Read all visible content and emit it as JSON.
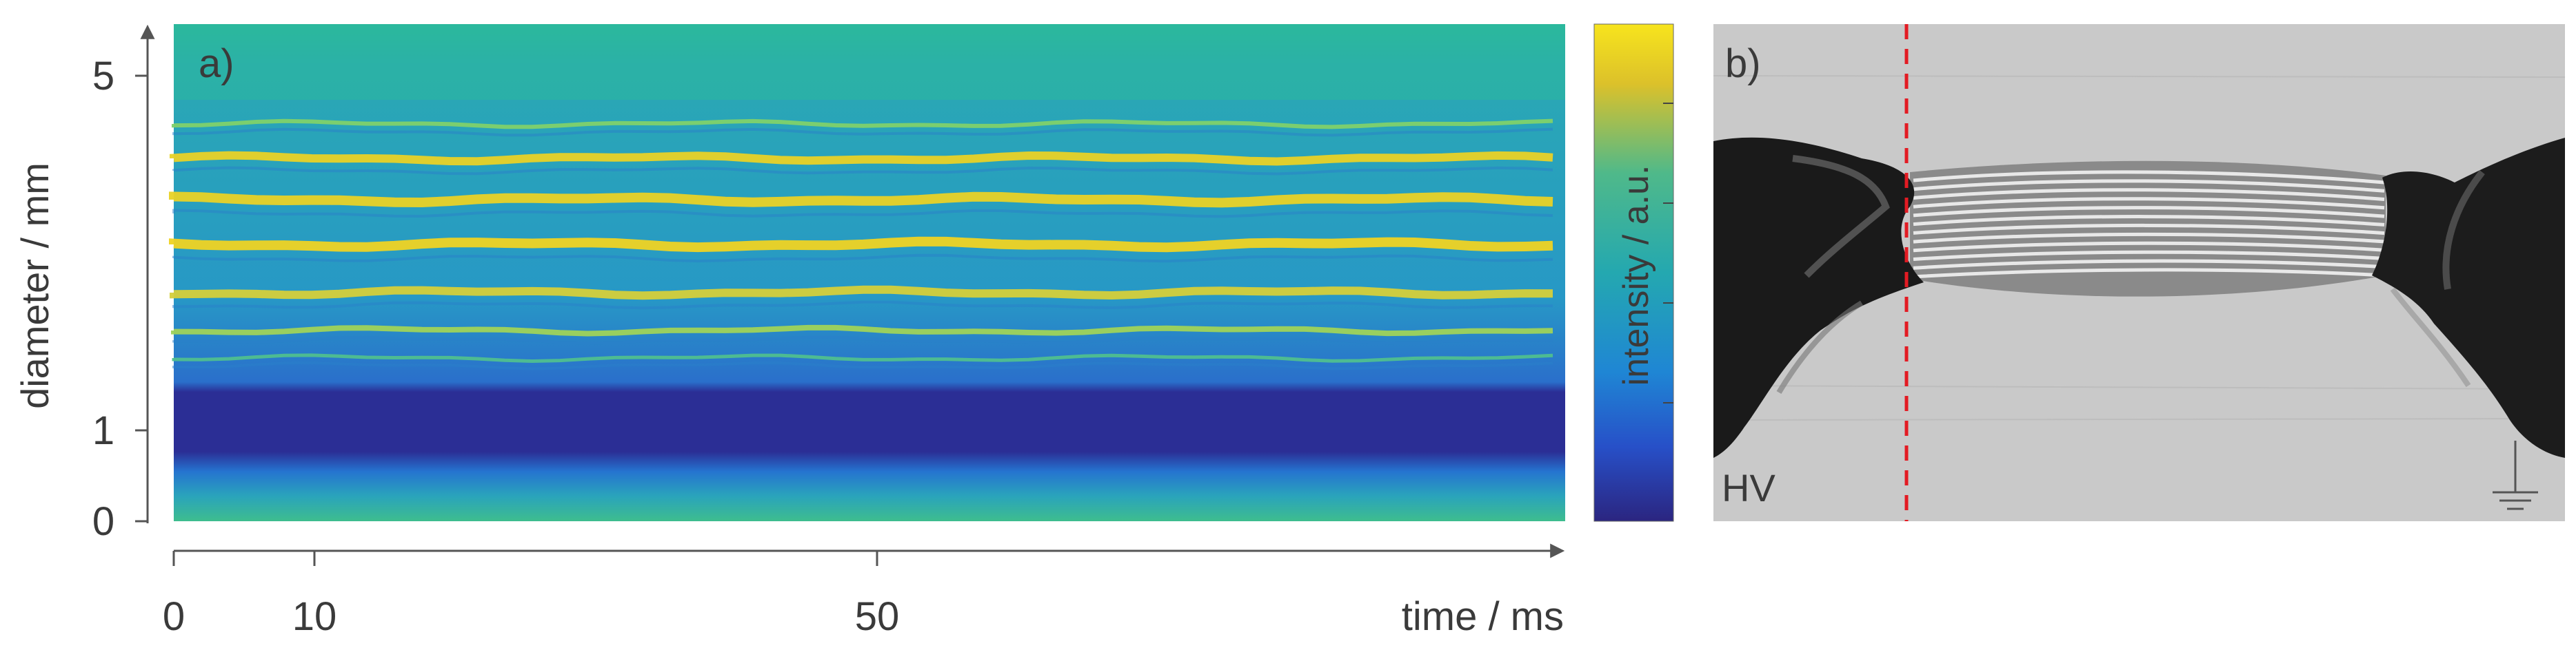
{
  "panel_a": {
    "label": "a)",
    "ylabel": "diameter / mm",
    "xlabel": "time /  ms",
    "y_ticks": [
      {
        "value": 0,
        "label": "0"
      },
      {
        "value": 1,
        "label": "1"
      },
      {
        "value": 5,
        "label": "5"
      }
    ],
    "x_ticks": [
      {
        "value": 0,
        "label": "0"
      },
      {
        "value": 10,
        "label": "10"
      },
      {
        "value": 50,
        "label": "50"
      }
    ],
    "colorbar_label": "intensity / a.u.",
    "colors": {
      "high": "#f2d81c",
      "mid": "#26a6a0",
      "low": "#2a2a92",
      "background": "#2aa8b8"
    }
  },
  "panel_b": {
    "label": "b)",
    "electrode_label": "HV",
    "marker_color": "#e31b23",
    "ground_symbol": "ground-icon"
  }
}
